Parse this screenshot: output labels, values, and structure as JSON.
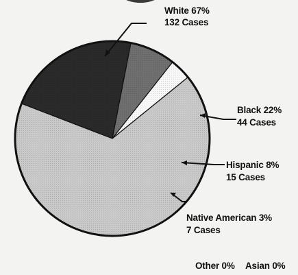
{
  "chart_data": {
    "type": "pie",
    "slices": [
      {
        "name": "White",
        "percent_label": "White 67%",
        "cases_label": "132 Cases",
        "value": 132,
        "color": "#c9c9c9"
      },
      {
        "name": "Black",
        "percent_label": "Black 22%",
        "cases_label": "44 Cases",
        "value": 44,
        "color": "#2a2a2a"
      },
      {
        "name": "Hispanic",
        "percent_label": "Hispanic 8%",
        "cases_label": "15 Cases",
        "value": 15,
        "color": "#6f6f6f"
      },
      {
        "name": "Native American",
        "percent_label": "Native American 3%",
        "cases_label": "7 Cases",
        "value": 7,
        "color": "#f8f8f8"
      },
      {
        "name": "Other",
        "percent_label": "Other 0%",
        "cases_label": "",
        "value": 0,
        "color": "#999999"
      },
      {
        "name": "Asian",
        "percent_label": "Asian 0%",
        "cases_label": "",
        "value": 0,
        "color": "#999999"
      }
    ]
  }
}
